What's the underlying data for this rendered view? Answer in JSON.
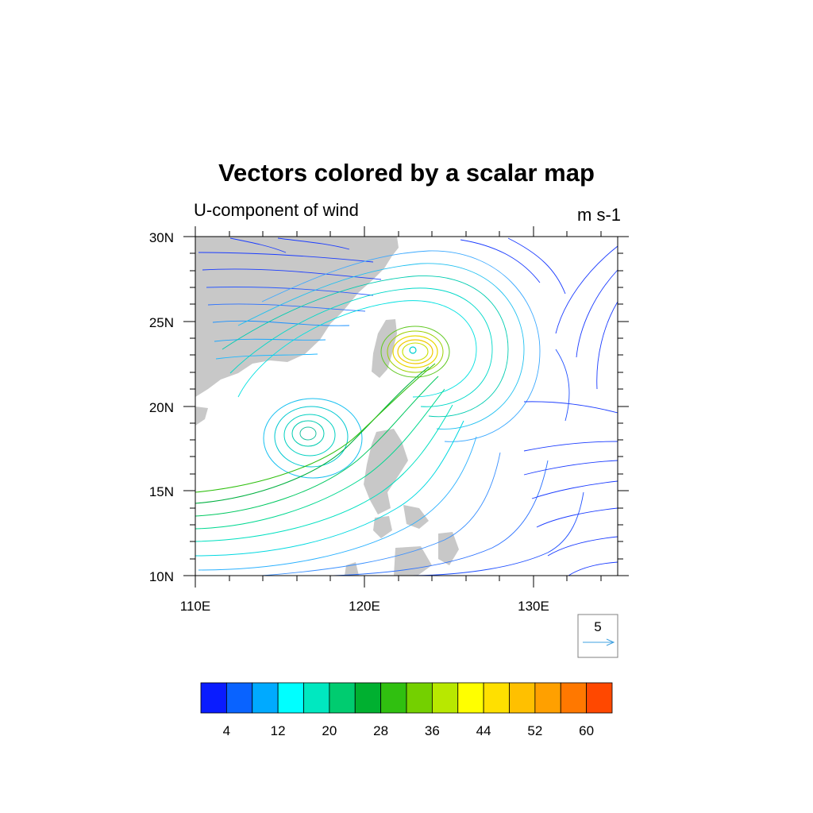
{
  "figure": {
    "title": "Vectors colored by a scalar map",
    "left_string": "U-component of wind",
    "right_string": "m s-1"
  },
  "map": {
    "lon_range": [
      110,
      135
    ],
    "lat_range": [
      10,
      30
    ],
    "lon_ticks": [
      {
        "value": 110,
        "label": "110E"
      },
      {
        "value": 120,
        "label": "120E"
      },
      {
        "value": 130,
        "label": "130E"
      }
    ],
    "lat_ticks": [
      {
        "value": 30,
        "label": "30N"
      },
      {
        "value": 25,
        "label": "25N"
      },
      {
        "value": 20,
        "label": "20N"
      },
      {
        "value": 15,
        "label": "15N"
      },
      {
        "value": 10,
        "label": "10N"
      }
    ],
    "land_color": "#c8c8c8",
    "features": [
      {
        "name": "cyclonic-circulation",
        "lon": 122.9,
        "lat": 23.2
      },
      {
        "name": "circulation",
        "lon": 116.5,
        "lat": 18.4
      }
    ]
  },
  "reference_vector": {
    "label": "5",
    "color": "#3fa0e0"
  },
  "colorbar": {
    "colors": [
      "#0a1cff",
      "#0963ff",
      "#00aaff",
      "#00ffff",
      "#00e8c0",
      "#00cc70",
      "#00b030",
      "#30c010",
      "#74d000",
      "#b8e800",
      "#ffff00",
      "#ffe000",
      "#ffc000",
      "#ffa000",
      "#ff7800",
      "#ff4800"
    ],
    "labels": [
      "4",
      "12",
      "20",
      "28",
      "36",
      "44",
      "52",
      "60"
    ]
  }
}
